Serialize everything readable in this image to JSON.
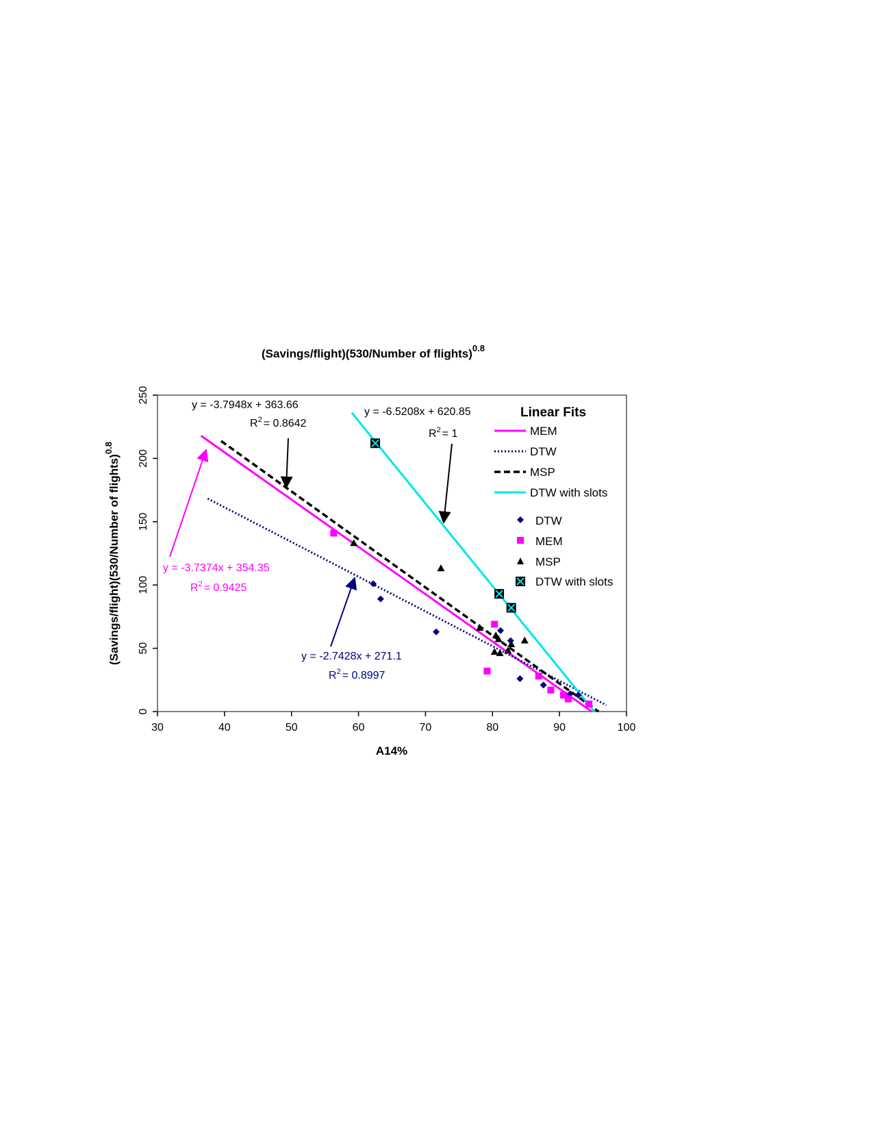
{
  "chart_data": {
    "type": "scatter",
    "title": "(Savings/flight)(530/Number of flights)",
    "title_superscript": "0.8",
    "xlabel": "A14%",
    "ylabel": "(Savings/flight)(530/Number of flights)",
    "ylabel_superscript": "0.8",
    "xlim": [
      30,
      100
    ],
    "ylim": [
      0,
      250
    ],
    "xticks": [
      "30",
      "40",
      "50",
      "60",
      "70",
      "80",
      "90",
      "100"
    ],
    "yticks": [
      "0",
      "50",
      "100",
      "150",
      "200",
      "250"
    ],
    "grid": false,
    "legend_title": "Linear Fits",
    "legend_position": "top-right",
    "fits": [
      {
        "name": "MEM",
        "color": "#ff00ff",
        "style": "solid",
        "x": [
          36.5,
          94.8
        ],
        "slope": -3.7374,
        "intercept": 354.35
      },
      {
        "name": "DTW",
        "color": "#000080",
        "style": "dotted",
        "x": [
          37.5,
          97.0
        ],
        "slope": -2.7428,
        "intercept": 271.1
      },
      {
        "name": "MSP",
        "color": "#000000",
        "style": "dashed",
        "x": [
          39.5,
          96.0
        ],
        "slope": -3.7948,
        "intercept": 363.66
      },
      {
        "name": "DTW with slots",
        "color": "#00e5ee",
        "style": "solid",
        "x": [
          59.0,
          95.2
        ],
        "slope": -6.5208,
        "intercept": 620.85
      }
    ],
    "series": [
      {
        "name": "DTW",
        "marker": "diamond",
        "color": "#000080",
        "points": [
          [
            62.2,
            101
          ],
          [
            63.3,
            89
          ],
          [
            71.6,
            63
          ],
          [
            81.2,
            64
          ],
          [
            82.7,
            56
          ],
          [
            84.1,
            26
          ],
          [
            87.6,
            21
          ],
          [
            91.6,
            14
          ],
          [
            92.8,
            13
          ],
          [
            94.3,
            6
          ]
        ]
      },
      {
        "name": "MEM",
        "marker": "square",
        "color": "#ff00ff",
        "points": [
          [
            56.3,
            141
          ],
          [
            79.2,
            32
          ],
          [
            80.3,
            69
          ],
          [
            86.9,
            28
          ],
          [
            88.7,
            17
          ],
          [
            90.6,
            13
          ],
          [
            91.3,
            10
          ],
          [
            94.4,
            6
          ]
        ]
      },
      {
        "name": "MSP",
        "marker": "triangle",
        "color": "#000000",
        "points": [
          [
            59.3,
            133
          ],
          [
            72.3,
            113
          ],
          [
            78.1,
            66
          ],
          [
            80.3,
            47
          ],
          [
            80.5,
            60
          ],
          [
            80.9,
            57
          ],
          [
            81.1,
            46
          ],
          [
            82.3,
            48
          ],
          [
            82.8,
            53
          ],
          [
            84.8,
            56
          ]
        ]
      },
      {
        "name": "DTW with slots",
        "marker": "boxed-x",
        "color": "#00e5ee",
        "points": [
          [
            62.5,
            212
          ],
          [
            81.0,
            93
          ],
          [
            82.8,
            82
          ]
        ]
      }
    ],
    "annotations": [
      {
        "for": "MSP",
        "equation": "y = -3.7948x + 363.66",
        "r2_label": "R",
        "r2_exp": "2",
        "r2_value": "= 0.8642",
        "color": "#000000"
      },
      {
        "for": "DTW with slots",
        "equation": "y = -6.5208x + 620.85",
        "r2_label": "R",
        "r2_exp": "2",
        "r2_value": "= 1",
        "color": "#000000"
      },
      {
        "for": "MEM",
        "equation": "y = -3.7374x + 354.35",
        "r2_label": "R",
        "r2_exp": "2",
        "r2_value": "= 0.9425",
        "color": "#ff00ff"
      },
      {
        "for": "DTW",
        "equation": "y = -2.7428x + 271.1",
        "r2_label": "R",
        "r2_exp": "2",
        "r2_value": "= 0.8997",
        "color": "#000080"
      }
    ]
  }
}
